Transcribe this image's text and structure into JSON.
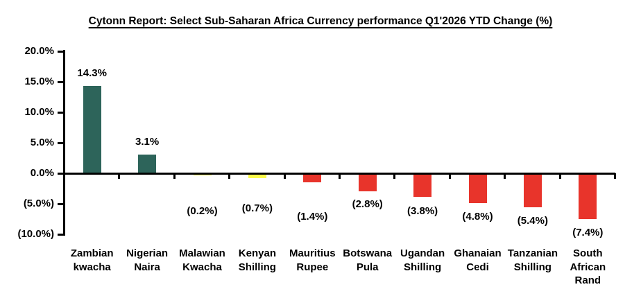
{
  "chart_data": {
    "type": "bar",
    "title": "Cytonn Report: Select Sub-Saharan Africa Currency performance Q1'2026 YTD Change (%)",
    "categories": [
      "Zambian kwacha",
      "Nigerian Naira",
      "Malawian Kwacha",
      "Kenyan Shilling",
      "Mauritius Rupee",
      "Botswana Pula",
      "Ugandan Shilling",
      "Ghanaian Cedi",
      "Tanzanian Shilling",
      "South African Rand"
    ],
    "category_lines": [
      [
        "Zambian",
        "kwacha"
      ],
      [
        "Nigerian",
        "Naira"
      ],
      [
        "Malawian",
        "Kwacha"
      ],
      [
        "Kenyan",
        "Shilling"
      ],
      [
        "Mauritius",
        "Rupee"
      ],
      [
        "Botswana",
        "Pula"
      ],
      [
        "Ugandan",
        "Shilling"
      ],
      [
        "Ghanaian",
        "Cedi"
      ],
      [
        "Tanzanian",
        "Shilling"
      ],
      [
        "South",
        "African",
        "Rand"
      ]
    ],
    "values": [
      14.3,
      3.1,
      -0.2,
      -0.7,
      -1.4,
      -2.8,
      -3.8,
      -4.8,
      -5.4,
      -7.4
    ],
    "value_labels": [
      "14.3%",
      "3.1%",
      "(0.2%)",
      "(0.7%)",
      "(1.4%)",
      "(2.8%)",
      "(3.8%)",
      "(4.8%)",
      "(5.4%)",
      "(7.4%)"
    ],
    "bar_colors": [
      "#2D645A",
      "#2D645A",
      "#FBFB4B",
      "#FBFB4B",
      "#E8342B",
      "#E8342B",
      "#E8342B",
      "#E8342B",
      "#E8342B",
      "#E8342B"
    ],
    "colors": {
      "appreciation_green": "#2D645A",
      "mild_depreciation_yellow": "#FBFB4B",
      "depreciation_red": "#E8342B",
      "axis_black": "#000000"
    },
    "xlabel": "",
    "ylabel": "",
    "y_axis": {
      "ticks": [
        20,
        15,
        10,
        5,
        0,
        -5,
        -10
      ],
      "tick_labels": [
        "20.0%",
        "15.0%",
        "10.0%",
        "5.0%",
        "0.0%",
        "(5.0%)",
        "(10.0%)"
      ],
      "range": [
        -10,
        20
      ]
    },
    "grid": false,
    "legend": false,
    "layout_hints": {
      "value_label_dy": [
        -18,
        -18,
        53,
        45,
        51,
        20,
        22,
        21,
        21,
        21
      ],
      "zero_baseline": true,
      "value_labels_position": "outside-end"
    }
  }
}
